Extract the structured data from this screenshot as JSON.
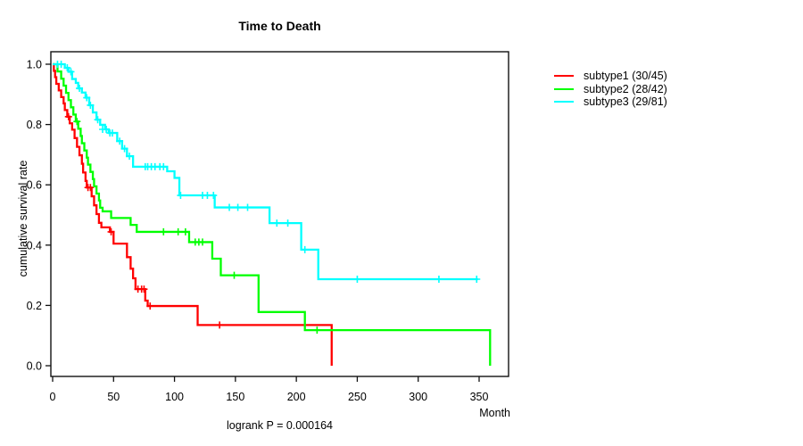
{
  "title": "Time to Death",
  "axes": {
    "x_label": "Month",
    "y_label": "cumulative survival rate"
  },
  "footnote": "logrank P = 0.000164",
  "legend": [
    {
      "label": "subtype1 (30/45)",
      "color": "#FF0000"
    },
    {
      "label": "subtype2 (28/42)",
      "color": "#00FF00"
    },
    {
      "label": "subtype3 (29/81)",
      "color": "#00FFFF"
    }
  ],
  "chart_data": {
    "type": "line",
    "variant": "kaplan-meier-step",
    "title": "Time to Death",
    "xlabel": "Month",
    "ylabel": "cumulative survival rate",
    "annotation": "logrank P = 0.000164",
    "xlim": [
      0,
      374
    ],
    "ylim": [
      0.0,
      1.0
    ],
    "xticks": [
      0,
      50,
      100,
      150,
      200,
      250,
      300,
      350
    ],
    "yticks": [
      0.0,
      0.2,
      0.4,
      0.6,
      0.8,
      1.0
    ],
    "grid": false,
    "legend_position": "outside-top-right",
    "series": [
      {
        "name": "subtype1 (30/45)",
        "color": "#FF0000",
        "steps": [
          [
            0,
            1.0
          ],
          [
            1,
            0.978
          ],
          [
            2,
            0.957
          ],
          [
            3,
            0.935
          ],
          [
            5,
            0.913
          ],
          [
            7,
            0.891
          ],
          [
            9,
            0.87
          ],
          [
            10,
            0.848
          ],
          [
            12,
            0.826
          ],
          [
            14,
            0.804
          ],
          [
            16,
            0.783
          ],
          [
            18,
            0.755
          ],
          [
            20,
            0.726
          ],
          [
            22,
            0.698
          ],
          [
            24,
            0.67
          ],
          [
            25,
            0.641
          ],
          [
            27,
            0.613
          ],
          [
            28,
            0.591
          ],
          [
            32,
            0.562
          ],
          [
            34,
            0.532
          ],
          [
            36,
            0.503
          ],
          [
            38,
            0.474
          ],
          [
            40,
            0.459
          ],
          [
            47,
            0.444
          ],
          [
            50,
            0.405
          ],
          [
            61,
            0.36
          ],
          [
            64,
            0.322
          ],
          [
            66,
            0.29
          ],
          [
            68,
            0.254
          ],
          [
            76,
            0.216
          ],
          [
            78,
            0.198
          ],
          [
            119,
            0.135
          ],
          [
            229,
            0.0
          ]
        ],
        "censors": [
          [
            13,
            0.826
          ],
          [
            29,
            0.591
          ],
          [
            31,
            0.591
          ],
          [
            48,
            0.444
          ],
          [
            70,
            0.254
          ],
          [
            73,
            0.254
          ],
          [
            75,
            0.254
          ],
          [
            80,
            0.198
          ],
          [
            137,
            0.135
          ]
        ]
      },
      {
        "name": "subtype2 (28/42)",
        "color": "#00FF00",
        "steps": [
          [
            0,
            1.0
          ],
          [
            4,
            0.976
          ],
          [
            7,
            0.952
          ],
          [
            9,
            0.929
          ],
          [
            11,
            0.905
          ],
          [
            13,
            0.881
          ],
          [
            15,
            0.857
          ],
          [
            17,
            0.833
          ],
          [
            19,
            0.81
          ],
          [
            21,
            0.786
          ],
          [
            23,
            0.762
          ],
          [
            24,
            0.738
          ],
          [
            26,
            0.714
          ],
          [
            28,
            0.69
          ],
          [
            29,
            0.667
          ],
          [
            31,
            0.643
          ],
          [
            33,
            0.619
          ],
          [
            34,
            0.595
          ],
          [
            36,
            0.571
          ],
          [
            38,
            0.548
          ],
          [
            39,
            0.524
          ],
          [
            41,
            0.512
          ],
          [
            48,
            0.49
          ],
          [
            64,
            0.467
          ],
          [
            69,
            0.444
          ],
          [
            112,
            0.41
          ],
          [
            131,
            0.355
          ],
          [
            138,
            0.3
          ],
          [
            169,
            0.178
          ],
          [
            207,
            0.118
          ],
          [
            359,
            0.0
          ]
        ],
        "censors": [
          [
            20,
            0.81
          ],
          [
            91,
            0.444
          ],
          [
            103,
            0.444
          ],
          [
            109,
            0.444
          ],
          [
            117,
            0.41
          ],
          [
            120,
            0.41
          ],
          [
            123,
            0.41
          ],
          [
            149,
            0.3
          ],
          [
            217,
            0.118
          ]
        ]
      },
      {
        "name": "subtype3 (29/81)",
        "color": "#00FFFF",
        "steps": [
          [
            0,
            1.0
          ],
          [
            10,
            0.988
          ],
          [
            13,
            0.975
          ],
          [
            16,
            0.951
          ],
          [
            19,
            0.938
          ],
          [
            21,
            0.92
          ],
          [
            24,
            0.906
          ],
          [
            27,
            0.889
          ],
          [
            30,
            0.864
          ],
          [
            33,
            0.84
          ],
          [
            36,
            0.816
          ],
          [
            39,
            0.799
          ],
          [
            43,
            0.784
          ],
          [
            46,
            0.772
          ],
          [
            53,
            0.745
          ],
          [
            57,
            0.72
          ],
          [
            61,
            0.695
          ],
          [
            66,
            0.66
          ],
          [
            94,
            0.645
          ],
          [
            100,
            0.623
          ],
          [
            104,
            0.565
          ],
          [
            133,
            0.525
          ],
          [
            178,
            0.473
          ],
          [
            204,
            0.385
          ],
          [
            218,
            0.287
          ],
          [
            349,
            0.287
          ]
        ],
        "censors": [
          [
            4,
            1.0
          ],
          [
            7,
            1.0
          ],
          [
            12,
            0.988
          ],
          [
            15,
            0.975
          ],
          [
            22,
            0.92
          ],
          [
            28,
            0.889
          ],
          [
            31,
            0.864
          ],
          [
            37,
            0.816
          ],
          [
            41,
            0.784
          ],
          [
            44,
            0.784
          ],
          [
            47,
            0.772
          ],
          [
            49,
            0.772
          ],
          [
            55,
            0.745
          ],
          [
            59,
            0.72
          ],
          [
            63,
            0.695
          ],
          [
            76,
            0.66
          ],
          [
            78,
            0.66
          ],
          [
            81,
            0.66
          ],
          [
            84,
            0.66
          ],
          [
            88,
            0.66
          ],
          [
            91,
            0.66
          ],
          [
            105,
            0.565
          ],
          [
            123,
            0.565
          ],
          [
            127,
            0.565
          ],
          [
            132,
            0.565
          ],
          [
            145,
            0.525
          ],
          [
            152,
            0.525
          ],
          [
            160,
            0.525
          ],
          [
            184,
            0.473
          ],
          [
            193,
            0.473
          ],
          [
            207,
            0.385
          ],
          [
            250,
            0.287
          ],
          [
            317,
            0.287
          ],
          [
            348,
            0.287
          ]
        ]
      }
    ]
  }
}
